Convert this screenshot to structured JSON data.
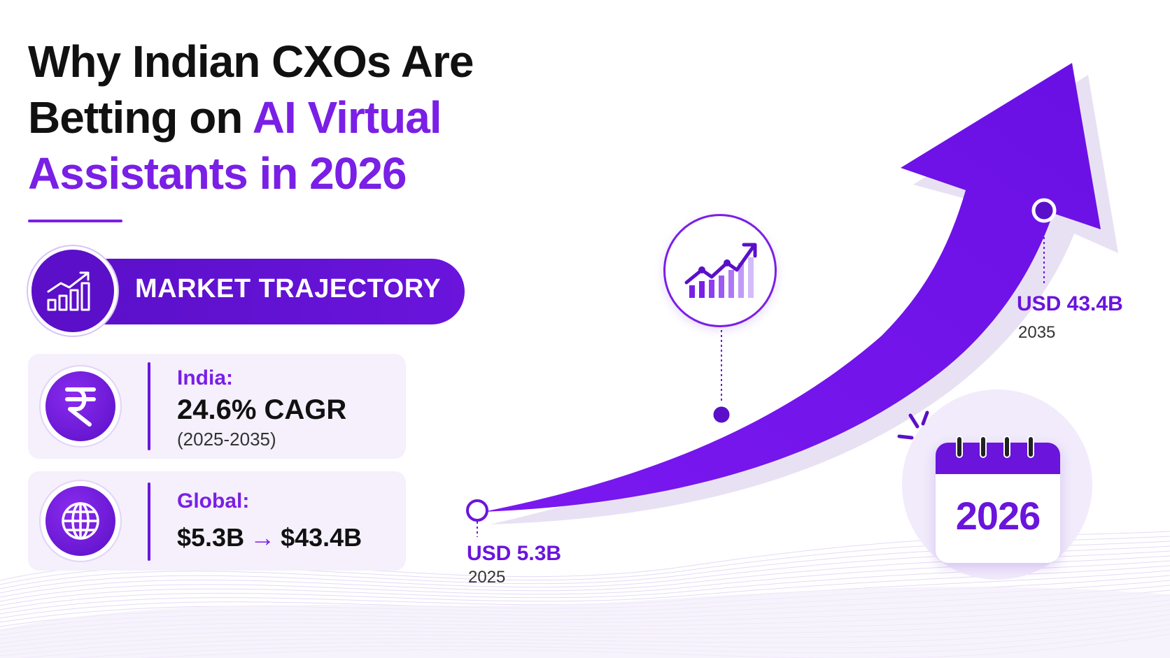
{
  "title": {
    "line1": "Why Indian CXOs Are",
    "line2_prefix": "Betting on ",
    "line2_accent": "AI Virtual",
    "line3": "Assistants in 2026"
  },
  "section": {
    "label": "MARKET TRAJECTORY",
    "icon": "bar-chart-growth-icon"
  },
  "india": {
    "label": "India:",
    "value": "24.6% CAGR",
    "period": "(2025-2035)",
    "icon": "rupee-icon"
  },
  "global": {
    "label": "Global:",
    "from": "$5.3B",
    "arrow": "→",
    "to": "$43.4B",
    "icon": "globe-icon"
  },
  "trajectory": {
    "start": {
      "value": "USD 5.3B",
      "year": "2025"
    },
    "end": {
      "value": "USD 43.4B",
      "year": "2035"
    },
    "growth_icon": "growth-chart-icon"
  },
  "calendar": {
    "year": "2026",
    "icon": "calendar-icon"
  },
  "colors": {
    "accent": "#7a1fe6",
    "deep": "#5a10c8",
    "text": "#111111"
  }
}
